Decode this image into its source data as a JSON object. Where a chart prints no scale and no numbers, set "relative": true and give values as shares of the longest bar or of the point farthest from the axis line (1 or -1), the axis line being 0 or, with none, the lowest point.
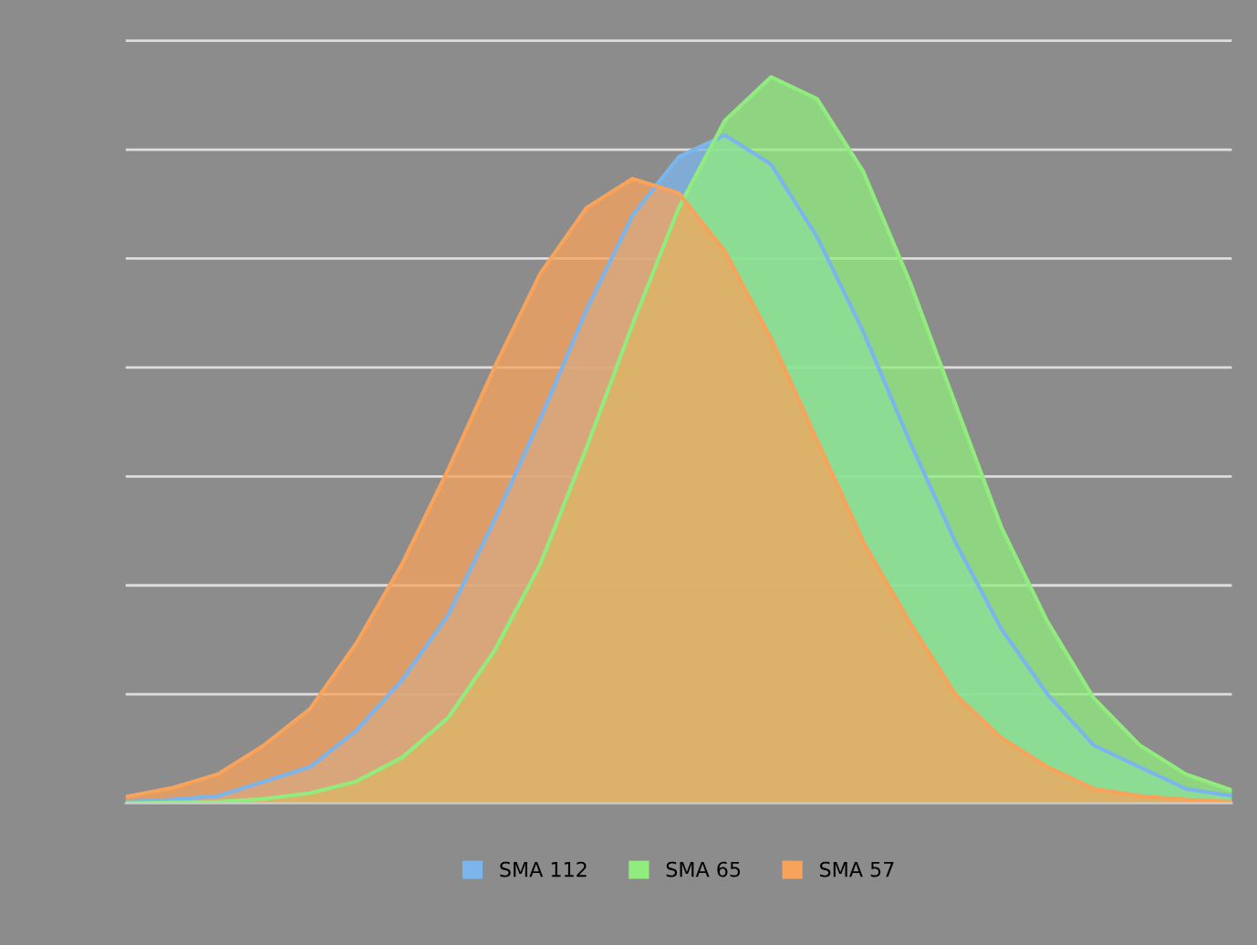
{
  "chart_data": {
    "type": "area",
    "relative": true,
    "grid": "y",
    "legend": "bottom",
    "categories": [
      null,
      null,
      null,
      null,
      null,
      null,
      null,
      null,
      null,
      null,
      null,
      null,
      null,
      null,
      null,
      null,
      null,
      null,
      null,
      null,
      null,
      null,
      null,
      null,
      null
    ],
    "series": [
      {
        "name": "SMA 112",
        "color": "#7cb5ec",
        "values": [
          0.002,
          0.005,
          0.01,
          0.03,
          0.05,
          0.1,
          0.17,
          0.26,
          0.39,
          0.53,
          0.68,
          0.81,
          0.89,
          0.92,
          0.88,
          0.78,
          0.65,
          0.5,
          0.36,
          0.24,
          0.15,
          0.08,
          0.05,
          0.02,
          0.01
        ]
      },
      {
        "name": "SMA 65",
        "color": "#90ed7d",
        "values": [
          0,
          0.001,
          0.002,
          0.006,
          0.014,
          0.03,
          0.063,
          0.118,
          0.21,
          0.33,
          0.49,
          0.66,
          0.82,
          0.94,
          1.0,
          0.97,
          0.87,
          0.72,
          0.55,
          0.38,
          0.25,
          0.145,
          0.08,
          0.04,
          0.018
        ]
      },
      {
        "name": "SMA 57",
        "color": "#f7a35c",
        "values": [
          0.009,
          0.021,
          0.04,
          0.08,
          0.13,
          0.22,
          0.33,
          0.46,
          0.6,
          0.73,
          0.82,
          0.86,
          0.84,
          0.76,
          0.64,
          0.5,
          0.36,
          0.25,
          0.15,
          0.09,
          0.05,
          0.02,
          0.01,
          0.005,
          0.002
        ]
      }
    ]
  }
}
